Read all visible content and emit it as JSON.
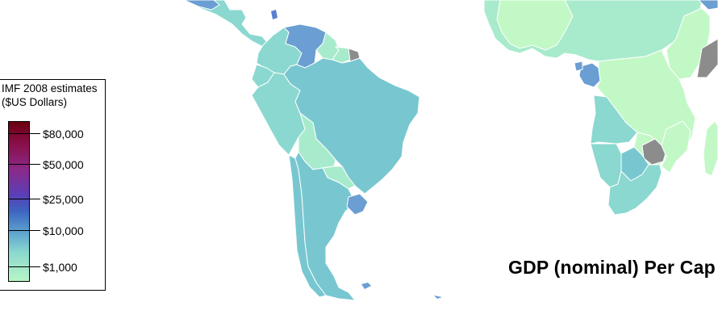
{
  "map": {
    "title": "GDP (nominal) Per Cap",
    "colors": {
      "ocean": "#ffffff",
      "border": "#ffffff",
      "band_upto_1000": "#c2f8c6",
      "band_1000_5000": "#a8ebcc",
      "band_5000_10000": "#8ad8cf",
      "band_10000_25000": "#78c7d0",
      "band_25000_plus": "#6b9ed2",
      "no_data": "#8c8c8c"
    }
  },
  "legend": {
    "title_line1": "IMF 2008 estimates",
    "title_line2": "($US Dollars)",
    "ticks": [
      "$80,000",
      "$50,000",
      "$25,000",
      "$10,000",
      "$1,000"
    ]
  }
}
